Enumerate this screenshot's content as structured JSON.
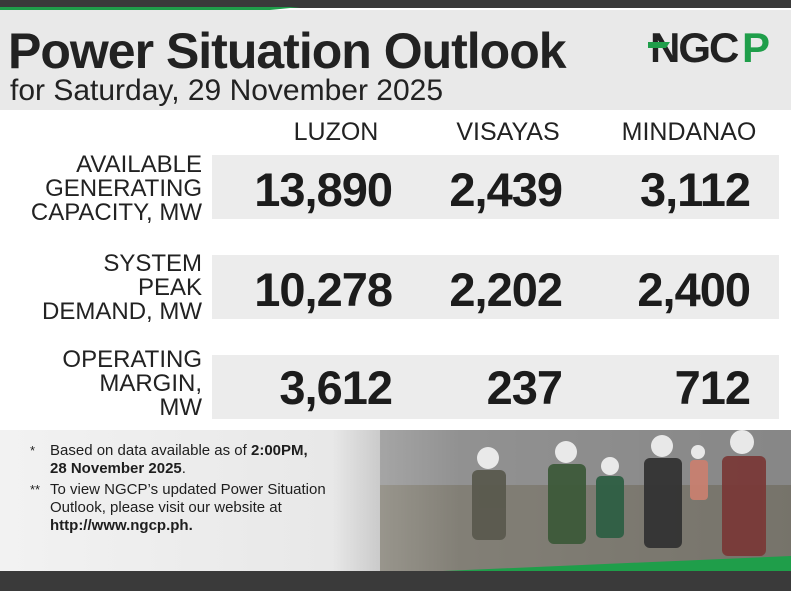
{
  "header": {
    "title": "Power Situation Outlook",
    "subtitle": "for Saturday, 29 November 2025",
    "logo_text": "NGCP"
  },
  "columns": [
    "LUZON",
    "VISAYAS",
    "MINDANAO"
  ],
  "rows": [
    {
      "label": "AVAILABLE\nGENERATING\nCAPACITY, MW",
      "values": [
        "13,890",
        "2,439",
        "3,112"
      ]
    },
    {
      "label": "SYSTEM\nPEAK\nDEMAND, MW",
      "values": [
        "10,278",
        "2,202",
        "2,400"
      ]
    },
    {
      "label": "OPERATING\nMARGIN,\nMW",
      "values": [
        "3,612",
        "237",
        "712"
      ]
    }
  ],
  "notes": {
    "n1_mark": "*",
    "n1_text": "Based on data available as of ",
    "n1_bold": "2:00PM,",
    "n1_bold2": "28 November 2025",
    "n1_end": ".",
    "n2_mark": "**",
    "n2_text": "To view NGCP’s updated Power Situation Outlook, please visit our website at",
    "n2_url": "http://www.ngcp.ph",
    "n2_end": "."
  },
  "colors": {
    "brand_green": "#1f9e4a",
    "dark_bar": "#3a3a3a",
    "band_gray": "#ececec",
    "header_gray": "#e9e9e9"
  }
}
